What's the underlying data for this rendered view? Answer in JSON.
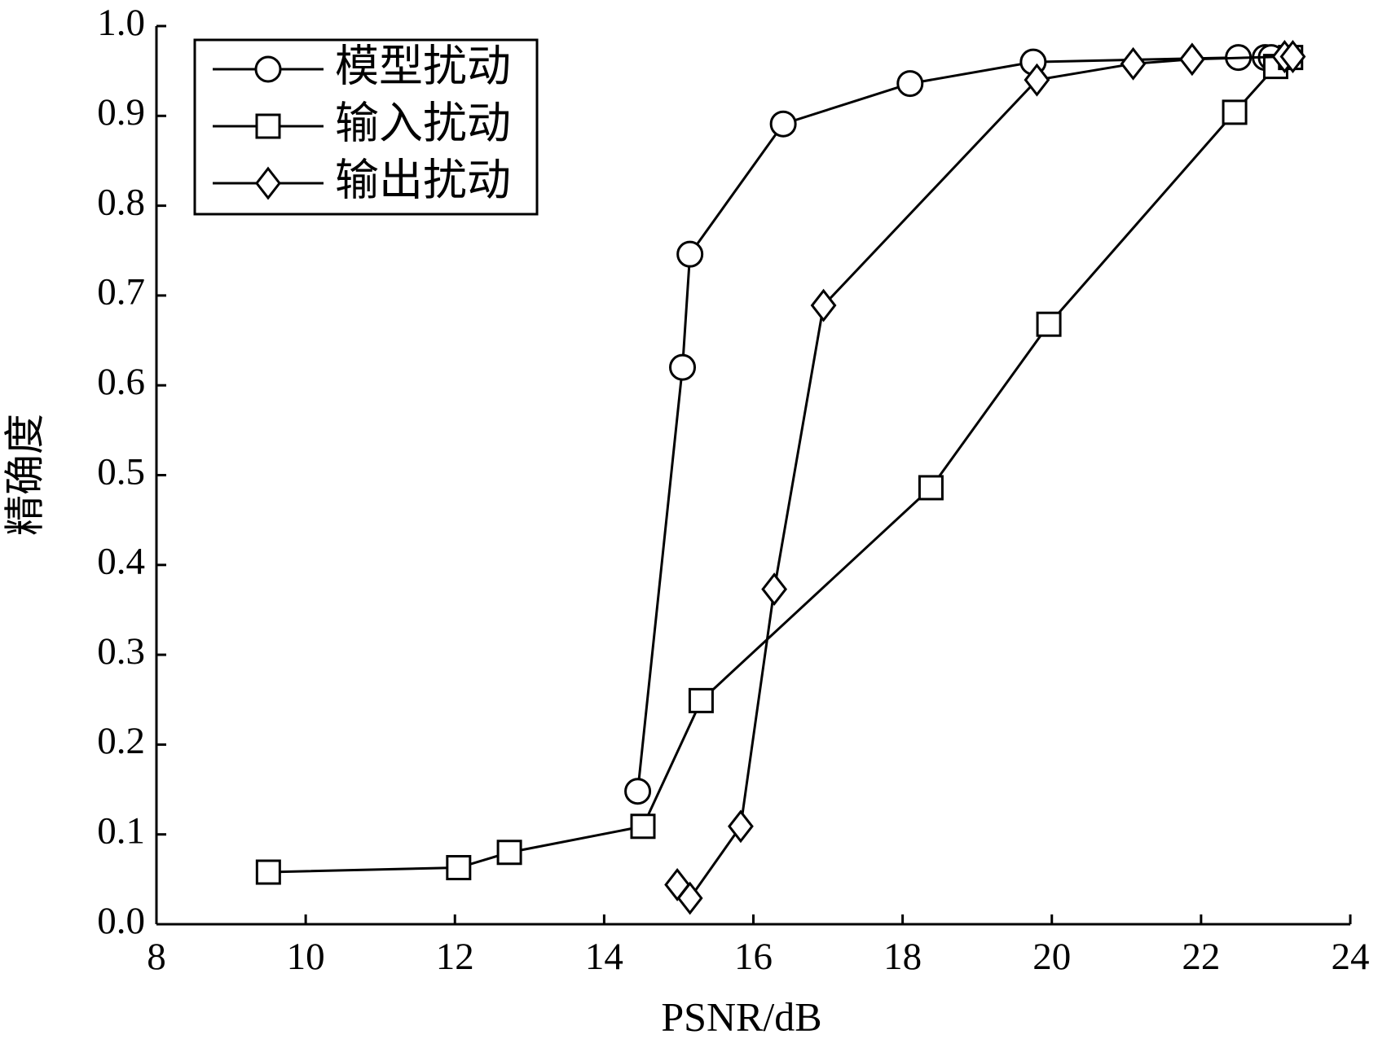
{
  "chart_data": {
    "type": "line",
    "x_label": "PSNR/dB",
    "y_label": "精确度",
    "xlim": [
      8,
      24
    ],
    "xticks": [
      8,
      10,
      12,
      14,
      16,
      18,
      20,
      22,
      24
    ],
    "ylim": [
      0,
      1
    ],
    "yticks": [
      {
        "value": 0,
        "label": "0.0"
      },
      0.1,
      0.2,
      0.3,
      0.4,
      0.5,
      0.6,
      0.7,
      0.8,
      0.9,
      {
        "value": 1,
        "label": "1.0"
      }
    ],
    "grid": false,
    "legend": "upper left",
    "series": [
      {
        "name": "模型扰动",
        "color": "#000000",
        "marker": "circle",
        "x": [
          14.45,
          15.05,
          15.15,
          16.4,
          18.1,
          19.75,
          22.5,
          22.86,
          22.94
        ],
        "values": [
          0.148,
          0.62,
          0.746,
          0.891,
          0.936,
          0.96,
          0.965,
          0.965,
          0.965
        ]
      },
      {
        "name": "输入扰动",
        "color": "#000000",
        "marker": "square",
        "x": [
          9.5,
          12.05,
          12.73,
          14.52,
          15.3,
          18.38,
          19.96,
          22.45,
          23.0,
          23.2
        ],
        "values": [
          0.058,
          0.063,
          0.08,
          0.109,
          0.249,
          0.486,
          0.668,
          0.904,
          0.955,
          0.965
        ]
      },
      {
        "name": "输出扰动",
        "color": "#000000",
        "marker": "diamond",
        "x": [
          14.98,
          15.15,
          15.83,
          16.28,
          16.94,
          19.8,
          21.09,
          21.88,
          23.12,
          23.23
        ],
        "values": [
          0.044,
          0.029,
          0.109,
          0.373,
          0.689,
          0.94,
          0.958,
          0.963,
          0.966,
          0.966
        ]
      }
    ]
  }
}
